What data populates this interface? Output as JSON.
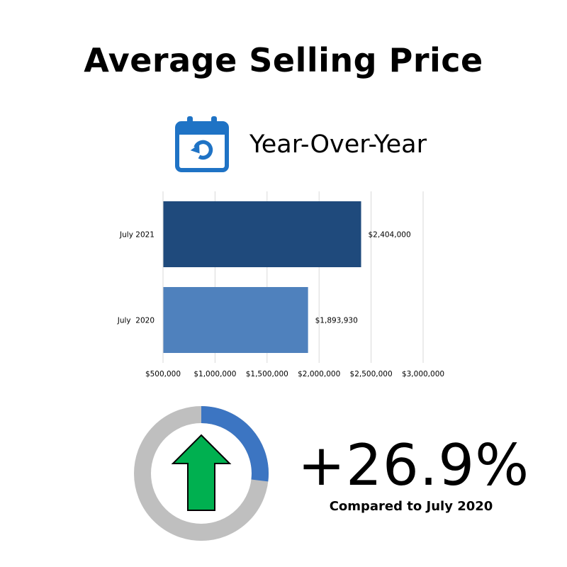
{
  "header": {
    "title": "Average Selling Price",
    "subtitle": "Year-Over-Year"
  },
  "icons": {
    "yoy": "calendar-refresh-icon",
    "trend": "up-arrow-icon"
  },
  "colors": {
    "accent_blue": "#1f73c5",
    "bar_2021": "#1f4a7c",
    "bar_2020": "#4f81bd",
    "ring_track": "#bfbfbf",
    "ring_fill": "#3c75c2",
    "arrow_green": "#00b050"
  },
  "chart_data": {
    "type": "bar",
    "orientation": "horizontal",
    "categories": [
      "July 2021",
      "July  2020"
    ],
    "values": [
      2404000,
      1893930
    ],
    "value_labels": [
      "$2,404,000",
      "$1,893,930"
    ],
    "xlim": [
      500000,
      3000000
    ],
    "x_ticks": [
      500000,
      1000000,
      1500000,
      2000000,
      2500000,
      3000000
    ],
    "x_tick_labels": [
      "$500,000",
      "$1,000,000",
      "$1,500,000",
      "$2,000,000",
      "$2,500,000",
      "$3,000,000"
    ],
    "grid": true,
    "legend": "none"
  },
  "summary": {
    "change": "+26.9%",
    "change_fraction": 0.269,
    "caption": "Compared to July 2020"
  }
}
